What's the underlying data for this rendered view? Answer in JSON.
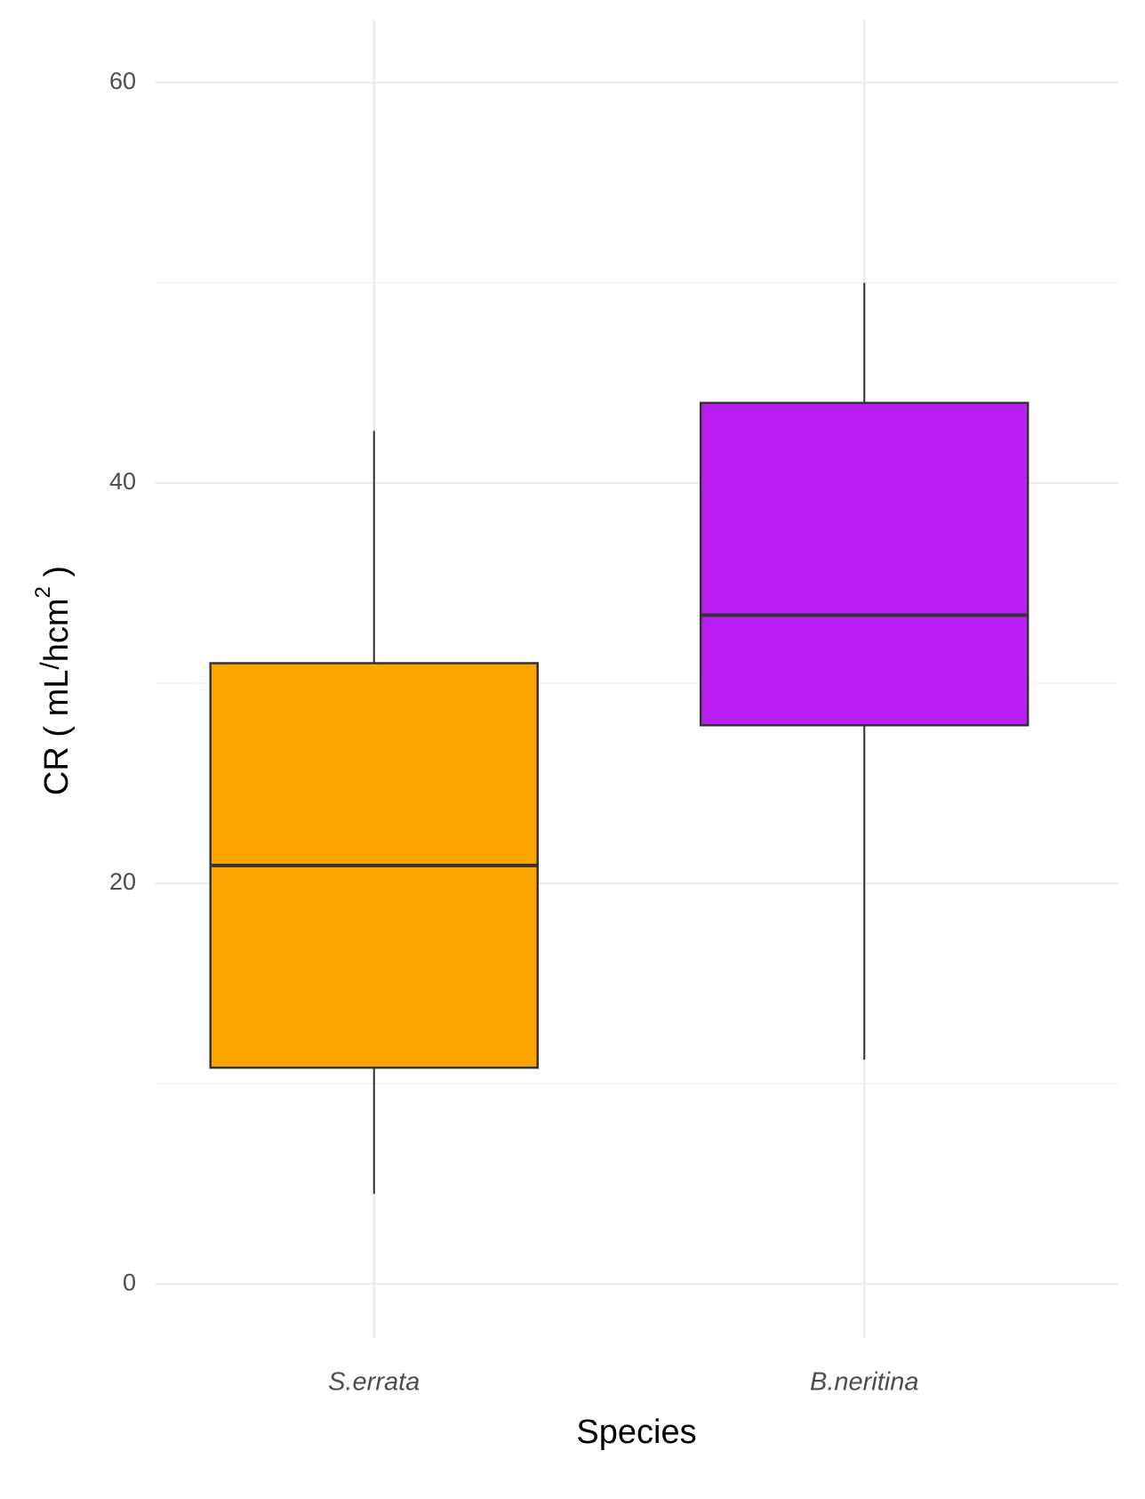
{
  "chart_data": {
    "type": "box",
    "xlabel": "Species",
    "ylabel": [
      "CR ( mL",
      "/",
      "hcm",
      "2",
      " )"
    ],
    "categories": [
      "S.errata",
      "B.neritina"
    ],
    "colors": [
      "#ffa500",
      "#b91ff3"
    ],
    "boxes": [
      {
        "whisker_low": 4.5,
        "q1": 10.8,
        "median": 20.9,
        "q3": 31.0,
        "whisker_high": 42.6
      },
      {
        "whisker_low": 11.2,
        "q1": 27.9,
        "median": 33.4,
        "q3": 44.0,
        "whisker_high": 50.0
      }
    ],
    "ylim": [
      -2.7,
      63.1
    ],
    "yticks": [
      0,
      20,
      40,
      60
    ],
    "yminor": [
      10,
      30,
      50
    ],
    "grid": true
  }
}
